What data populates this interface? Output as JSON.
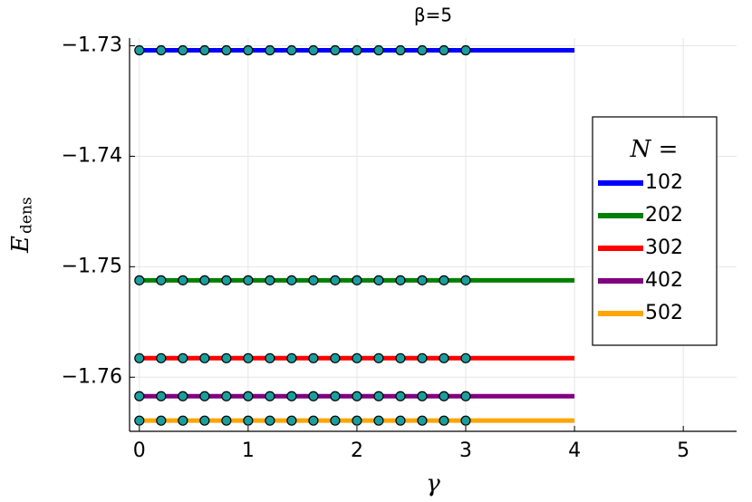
{
  "chart_data": {
    "type": "line",
    "title": "β=5",
    "xlabel": "γ",
    "ylabel": "E",
    "ylabel_sub": "dens",
    "xlim": [
      -0.09,
      5.49
    ],
    "xticks": [
      0,
      1,
      2,
      3,
      4,
      5
    ],
    "ylim": [
      -1.7649,
      -1.7293
    ],
    "yticks": [
      {
        "value": -1.73,
        "label": "−1.73"
      },
      {
        "value": -1.74,
        "label": "−1.74"
      },
      {
        "value": -1.75,
        "label": "−1.75"
      },
      {
        "value": -1.76,
        "label": "−1.76"
      }
    ],
    "grid": true,
    "legend": "right",
    "legend_title": "N =",
    "marker_color": "#1a9e9e",
    "series": [
      {
        "name": "102",
        "color": "#0000ff",
        "x": [
          0,
          4
        ],
        "values": [
          -1.73041,
          -1.73041
        ],
        "marker_x": [
          0,
          0.2,
          0.4,
          0.6,
          0.8,
          1,
          1.2,
          1.4,
          1.6,
          1.8,
          2,
          2.2,
          2.4,
          2.6,
          2.8,
          3
        ],
        "marker_values": [
          -1.73041,
          -1.73041,
          -1.73041,
          -1.73041,
          -1.73041,
          -1.73041,
          -1.73041,
          -1.73041,
          -1.73041,
          -1.73041,
          -1.73041,
          -1.73041,
          -1.73041,
          -1.73041,
          -1.73041,
          -1.73041
        ]
      },
      {
        "name": "202",
        "color": "#008000",
        "x": [
          0,
          4
        ],
        "values": [
          -1.75123,
          -1.75123
        ],
        "marker_x": [
          0,
          0.2,
          0.4,
          0.6,
          0.8,
          1,
          1.2,
          1.4,
          1.6,
          1.8,
          2,
          2.2,
          2.4,
          2.6,
          2.8,
          3
        ],
        "marker_values": [
          -1.75123,
          -1.75123,
          -1.75123,
          -1.75123,
          -1.75123,
          -1.75123,
          -1.75123,
          -1.75123,
          -1.75123,
          -1.75123,
          -1.75123,
          -1.75123,
          -1.75123,
          -1.75123,
          -1.75123,
          -1.75123
        ]
      },
      {
        "name": "302",
        "color": "#ff0000",
        "x": [
          0,
          4
        ],
        "values": [
          -1.75828,
          -1.75828
        ],
        "marker_x": [
          0,
          0.2,
          0.4,
          0.6,
          0.8,
          1,
          1.2,
          1.4,
          1.6,
          1.8,
          2,
          2.2,
          2.4,
          2.6,
          2.8,
          3
        ],
        "marker_values": [
          -1.75828,
          -1.75828,
          -1.75828,
          -1.75828,
          -1.75828,
          -1.75828,
          -1.75828,
          -1.75828,
          -1.75828,
          -1.75828,
          -1.75828,
          -1.75828,
          -1.75828,
          -1.75828,
          -1.75828,
          -1.75828
        ]
      },
      {
        "name": "402",
        "color": "#800080",
        "x": [
          0,
          4
        ],
        "values": [
          -1.76172,
          -1.76172
        ],
        "marker_x": [
          0,
          0.2,
          0.4,
          0.6,
          0.8,
          1,
          1.2,
          1.4,
          1.6,
          1.8,
          2,
          2.2,
          2.4,
          2.6,
          2.8,
          3
        ],
        "marker_values": [
          -1.76172,
          -1.76172,
          -1.76172,
          -1.76172,
          -1.76172,
          -1.76172,
          -1.76172,
          -1.76172,
          -1.76172,
          -1.76172,
          -1.76172,
          -1.76172,
          -1.76172,
          -1.76172,
          -1.76172,
          -1.76172
        ]
      },
      {
        "name": "502",
        "color": "#ffa500",
        "x": [
          0,
          4
        ],
        "values": [
          -1.76393,
          -1.76393
        ],
        "marker_x": [
          0,
          0.2,
          0.4,
          0.6,
          0.8,
          1,
          1.2,
          1.4,
          1.6,
          1.8,
          2,
          2.2,
          2.4,
          2.6,
          2.8,
          3
        ],
        "marker_values": [
          -1.76393,
          -1.76393,
          -1.76393,
          -1.76393,
          -1.76393,
          -1.76393,
          -1.76393,
          -1.76393,
          -1.76393,
          -1.76393,
          -1.76393,
          -1.76393,
          -1.76393,
          -1.76393,
          -1.76393,
          -1.76393
        ]
      }
    ]
  }
}
